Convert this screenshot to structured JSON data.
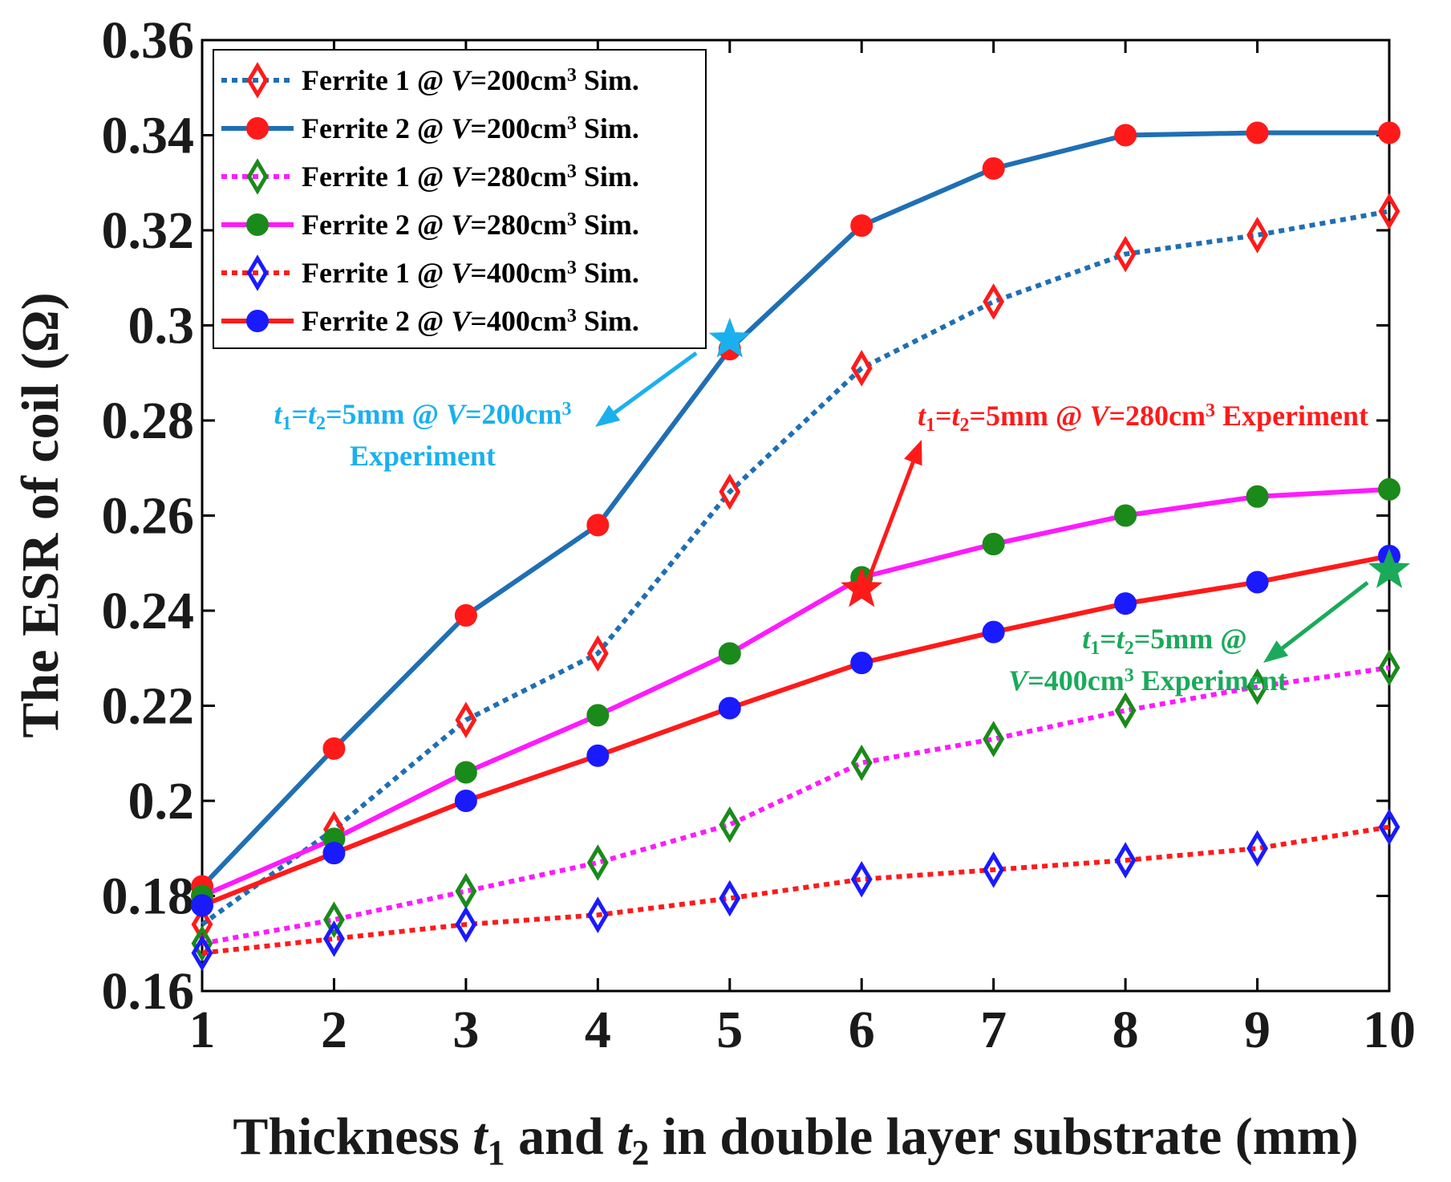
{
  "chart_data": {
    "type": "line",
    "xlabel": {
      "pre": "Thickness ",
      "t": "t",
      "s1": "1",
      "mid": " and ",
      "s2": "2",
      "post": " in double layer substrate (mm)"
    },
    "ylabel": "The ESR of coil (Ω)",
    "xlim": [
      1,
      10
    ],
    "ylim": [
      0.16,
      0.36
    ],
    "x": [
      1,
      2,
      3,
      4,
      5,
      6,
      7,
      8,
      9,
      10
    ],
    "xticks": [
      "1",
      "2",
      "3",
      "4",
      "5",
      "6",
      "7",
      "8",
      "9",
      "10"
    ],
    "yticks": [
      {
        "v": 0.16,
        "label": "0.16"
      },
      {
        "v": 0.18,
        "label": "0.18"
      },
      {
        "v": 0.2,
        "label": "0.2"
      },
      {
        "v": 0.22,
        "label": "0.22"
      },
      {
        "v": 0.24,
        "label": "0.24"
      },
      {
        "v": 0.26,
        "label": "0.26"
      },
      {
        "v": 0.28,
        "label": "0.28"
      },
      {
        "v": 0.3,
        "label": "0.3"
      },
      {
        "v": 0.32,
        "label": "0.32"
      },
      {
        "v": 0.34,
        "label": "0.34"
      },
      {
        "v": 0.36,
        "label": "0.36"
      }
    ],
    "series": [
      {
        "name": "ferrite1-v200",
        "label": {
          "pre": "Ferrite 1 @ ",
          "v": "V",
          "post": "=200cm",
          "sup": "3",
          "end": " Sim."
        },
        "values": [
          0.174,
          0.194,
          0.217,
          0.231,
          0.265,
          0.291,
          0.305,
          0.315,
          0.319,
          0.324
        ],
        "color": "#1f6fb4",
        "dash": "dotted",
        "marker": "diamond",
        "marker_color": "#ff1a1a"
      },
      {
        "name": "ferrite2-v200",
        "label": {
          "pre": "Ferrite 2 @ ",
          "v": "V",
          "post": "=200cm",
          "sup": "3",
          "end": " Sim."
        },
        "values": [
          0.182,
          0.211,
          0.239,
          0.258,
          0.295,
          0.321,
          0.333,
          0.34,
          0.3405,
          0.3405
        ],
        "color": "#1f6fb4",
        "dash": "solid",
        "marker": "circle",
        "marker_color": "#ff1a1a"
      },
      {
        "name": "ferrite1-v280",
        "label": {
          "pre": "Ferrite 1 @ ",
          "v": "V",
          "post": "=280cm",
          "sup": "3",
          "end": " Sim."
        },
        "values": [
          0.17,
          0.175,
          0.181,
          0.187,
          0.195,
          0.208,
          0.213,
          0.219,
          0.224,
          0.228
        ],
        "color": "#ff1aff",
        "dash": "dotted",
        "marker": "diamond",
        "marker_color": "#1a8a1a"
      },
      {
        "name": "ferrite2-v280",
        "label": {
          "pre": "Ferrite 2 @ ",
          "v": "V",
          "post": "=280cm",
          "sup": "3",
          "end": " Sim."
        },
        "values": [
          0.18,
          0.192,
          0.206,
          0.218,
          0.231,
          0.247,
          0.254,
          0.26,
          0.264,
          0.2655
        ],
        "color": "#ff1aff",
        "dash": "solid",
        "marker": "circle",
        "marker_color": "#1a8a1a"
      },
      {
        "name": "ferrite1-v400",
        "label": {
          "pre": "Ferrite 1 @ ",
          "v": "V",
          "post": "=400cm",
          "sup": "3",
          "end": " Sim."
        },
        "values": [
          0.168,
          0.171,
          0.174,
          0.176,
          0.1795,
          0.1835,
          0.1855,
          0.1875,
          0.19,
          0.1945
        ],
        "color": "#ff1a1a",
        "dash": "dotted",
        "marker": "diamond",
        "marker_color": "#1a1aff"
      },
      {
        "name": "ferrite2-v400",
        "label": {
          "pre": "Ferrite 2 @ ",
          "v": "V",
          "post": "=400cm",
          "sup": "3",
          "end": " Sim."
        },
        "values": [
          0.178,
          0.189,
          0.2,
          0.2095,
          0.2195,
          0.229,
          0.2355,
          0.2415,
          0.246,
          0.2515
        ],
        "color": "#ff1a1a",
        "dash": "solid",
        "marker": "circle",
        "marker_color": "#1a1aff"
      }
    ],
    "experiments": [
      {
        "name": "exp-v200",
        "x": 5,
        "y": 0.297,
        "color": "#1ab0ee",
        "lines": [
          [
            {
              "t": "t",
              "i": true
            },
            {
              "t": "1",
              "sub": true
            },
            {
              "t": "=",
              "i": false
            },
            {
              "t": "t",
              "i": true
            },
            {
              "t": "2",
              "sub": true
            },
            {
              "t": "=5mm @ "
            },
            {
              "t": "V",
              "i": true
            },
            {
              "t": "=200cm"
            },
            {
              "t": "3",
              "sup": true
            }
          ],
          [
            {
              "t": "Experiment"
            }
          ]
        ]
      },
      {
        "name": "exp-v280",
        "x": 6,
        "y": 0.2445,
        "color": "#ff1a1a",
        "lines": [
          [
            {
              "t": "t",
              "i": true
            },
            {
              "t": "1",
              "sub": true
            },
            {
              "t": "="
            },
            {
              "t": "t",
              "i": true
            },
            {
              "t": "2",
              "sub": true
            },
            {
              "t": "=5mm @ "
            },
            {
              "t": "V",
              "i": true
            },
            {
              "t": "=280cm"
            },
            {
              "t": "3",
              "sup": true
            },
            {
              "t": " Experiment"
            }
          ]
        ]
      },
      {
        "name": "exp-v400",
        "x": 10,
        "y": 0.2485,
        "color": "#1aaa5a",
        "lines": [
          [
            {
              "t": "t",
              "i": true
            },
            {
              "t": "1",
              "sub": true
            },
            {
              "t": "="
            },
            {
              "t": "t",
              "i": true
            },
            {
              "t": "2",
              "sub": true
            },
            {
              "t": "=5mm @"
            }
          ],
          [
            {
              "t": "V",
              "i": true
            },
            {
              "t": "=400cm"
            },
            {
              "t": "3",
              "sup": true
            },
            {
              "t": " Experiment"
            }
          ]
        ]
      }
    ]
  }
}
